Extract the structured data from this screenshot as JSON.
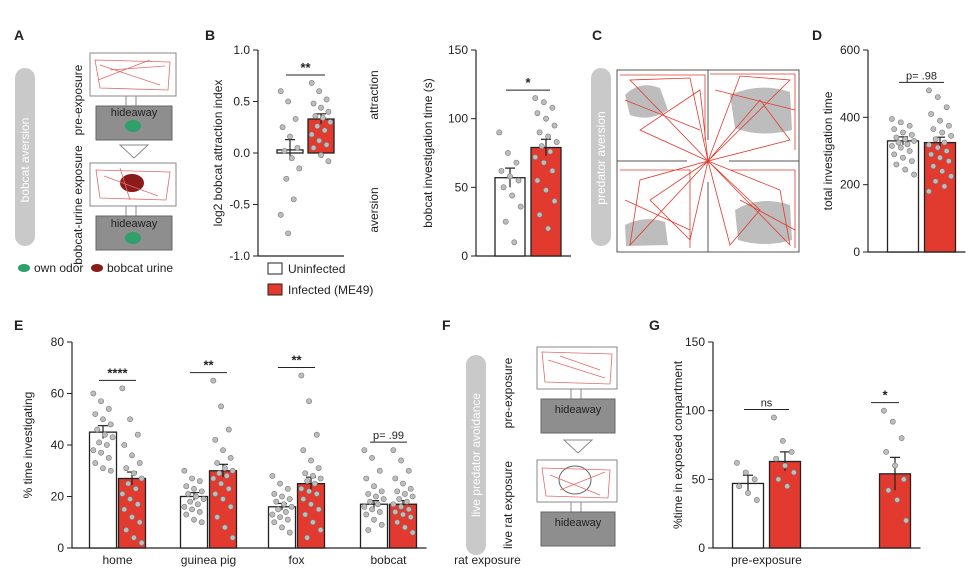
{
  "colors": {
    "infected": "#e23a2e",
    "uninfected": "#ffffff",
    "point": "#bdbdbd",
    "side_pill": "#c9c9c9",
    "odor_green": "#2ea06a",
    "urine_red": "#8b1a1a"
  },
  "panels": {
    "A": {
      "letter": "A",
      "side_label": "bobcat aversion",
      "top_label": "pre-exposure",
      "bottom_label": "bobcat-urine exposure",
      "hideaway": "hideaway",
      "legend_own": "own odor",
      "legend_bobcat": "bobcat urine"
    },
    "C": {
      "letter": "C",
      "side_label": "predator aversion"
    },
    "F": {
      "letter": "F",
      "side_label": "live predator avoidance",
      "top_label": "pre-exposure",
      "bottom_label": "live rat exposure",
      "hideaway": "hideaway"
    },
    "legend": {
      "uninfected": "Uninfected",
      "infected": "Infected (ME49)"
    }
  },
  "chart_data": [
    {
      "id": "B1",
      "letter": "B",
      "type": "bar",
      "ylabel": "log2 bobcat attraction index",
      "ylim": [
        -1.0,
        1.0
      ],
      "yticks": [
        "1.0",
        "0.5",
        "0.0",
        "-0.5",
        "-1.0"
      ],
      "series": [
        {
          "name": "Uninfected",
          "values": [
            0.03
          ],
          "sem": 0.1
        },
        {
          "name": "Infected (ME49)",
          "values": [
            0.33
          ],
          "sem": 0.05
        }
      ],
      "significance": "**",
      "annotations": [
        "attraction",
        "aversion"
      ],
      "points": [
        [
          0.6,
          0.5,
          0.33,
          0.25,
          0.16,
          0.05,
          0.02,
          -0.05,
          -0.15,
          -0.25,
          -0.45,
          -0.6,
          -0.78
        ],
        [
          0.68,
          0.6,
          0.52,
          0.48,
          0.44,
          0.4,
          0.36,
          0.34,
          0.3,
          0.26,
          0.22,
          0.18,
          0.12,
          0.08,
          0.05,
          -0.02,
          -0.08
        ]
      ]
    },
    {
      "id": "B2",
      "type": "bar",
      "ylabel": "bobcat investigation time (s)",
      "ylim": [
        0,
        150
      ],
      "yticks": [
        "150",
        "100",
        "50",
        "0"
      ],
      "series": [
        {
          "name": "Uninfected",
          "values": [
            57
          ],
          "sem": 7
        },
        {
          "name": "Infected (ME49)",
          "values": [
            79
          ],
          "sem": 6
        }
      ],
      "significance": "*",
      "points": [
        [
          90,
          75,
          68,
          62,
          58,
          55,
          50,
          44,
          36,
          25,
          10
        ],
        [
          115,
          112,
          108,
          104,
          100,
          95,
          90,
          87,
          83,
          80,
          76,
          72,
          68,
          62,
          55,
          48,
          40,
          30,
          20
        ]
      ]
    },
    {
      "id": "D",
      "letter": "D",
      "type": "bar",
      "ylabel": "total investigation time",
      "ylim": [
        0,
        600
      ],
      "yticks": [
        "600",
        "400",
        "200",
        "0"
      ],
      "series": [
        {
          "name": "Uninfected",
          "values": [
            330
          ],
          "sem": 12
        },
        {
          "name": "Infected (ME49)",
          "values": [
            325
          ],
          "sem": 16
        }
      ],
      "significance": "p= .98",
      "points": [
        [
          395,
          385,
          375,
          365,
          355,
          348,
          340,
          335,
          330,
          325,
          320,
          315,
          310,
          300,
          290,
          280,
          270,
          260,
          245,
          230
        ],
        [
          480,
          460,
          430,
          410,
          390,
          375,
          365,
          355,
          345,
          335,
          325,
          318,
          310,
          300,
          290,
          280,
          270,
          255,
          240,
          225,
          210,
          195,
          180
        ]
      ]
    },
    {
      "id": "E",
      "letter": "E",
      "type": "bar",
      "ylabel": "% time investigating",
      "ylim": [
        0,
        80
      ],
      "yticks": [
        "80",
        "60",
        "40",
        "20",
        "0"
      ],
      "categories": [
        "home",
        "guinea pig",
        "fox",
        "bobcat"
      ],
      "series": [
        {
          "name": "Uninfected",
          "values": [
            45,
            20,
            16,
            17
          ],
          "sem": [
            2.5,
            1.5,
            1.3,
            1.4
          ]
        },
        {
          "name": "Infected (ME49)",
          "values": [
            27,
            30,
            25,
            17
          ],
          "sem": [
            2.5,
            2.5,
            2.5,
            1.4
          ]
        }
      ],
      "significance": [
        "****",
        "**",
        "**",
        "p= .99"
      ],
      "points": [
        [
          [
            60,
            57,
            54,
            52,
            50,
            48,
            46,
            44,
            43,
            41,
            40,
            38,
            37,
            35,
            33,
            31,
            30
          ],
          [
            62,
            50,
            44,
            40,
            36,
            33,
            31,
            29,
            27,
            25,
            23,
            21,
            19,
            17,
            15,
            12,
            10,
            7,
            4,
            2
          ]
        ],
        [
          [
            30,
            27,
            26,
            24,
            23,
            22,
            21,
            20,
            19,
            18,
            17,
            16,
            15,
            14,
            13,
            11,
            10
          ],
          [
            65,
            55,
            46,
            42,
            38,
            35,
            33,
            31,
            30,
            29,
            28,
            27,
            25,
            23,
            21,
            19,
            16,
            12,
            8,
            4
          ]
        ],
        [
          [
            28,
            25,
            23,
            21,
            20,
            19,
            18,
            17,
            16,
            15,
            14,
            13,
            12,
            11,
            10,
            8,
            6
          ],
          [
            67,
            57,
            44,
            38,
            34,
            31,
            29,
            28,
            27,
            26,
            25,
            23,
            22,
            21,
            19,
            17,
            15,
            13,
            10,
            7,
            4
          ]
        ],
        [
          [
            38,
            35,
            30,
            27,
            24,
            22,
            21,
            20,
            19,
            18,
            17,
            16,
            15,
            14,
            13,
            11,
            9,
            7
          ],
          [
            38,
            34,
            30,
            27,
            25,
            23,
            22,
            21,
            20,
            19,
            18,
            17,
            16,
            15,
            14,
            13,
            12,
            10,
            8,
            6
          ]
        ]
      ]
    },
    {
      "id": "G",
      "letter": "G",
      "type": "bar",
      "ylabel": "%time in exposed compartment",
      "ylim": [
        0,
        150
      ],
      "yticks": [
        "150",
        "100",
        "50",
        "0"
      ],
      "categories": [
        "pre-exposure",
        "rat exposure"
      ],
      "series": [
        {
          "name": "Uninfected",
          "values": [
            47,
            null
          ],
          "sem": [
            6,
            null
          ]
        },
        {
          "name": "Infected (ME49)",
          "values": [
            63,
            54
          ],
          "sem": [
            7,
            12
          ]
        }
      ],
      "significance": [
        "ns",
        "*"
      ],
      "points": [
        [
          [
            62,
            55,
            50,
            45,
            40,
            35
          ],
          [
            95,
            78,
            70,
            65,
            60,
            55,
            50,
            45
          ]
        ],
        [
          [],
          [
            100,
            92,
            80,
            70,
            60,
            50,
            42,
            35,
            20
          ]
        ]
      ]
    }
  ]
}
